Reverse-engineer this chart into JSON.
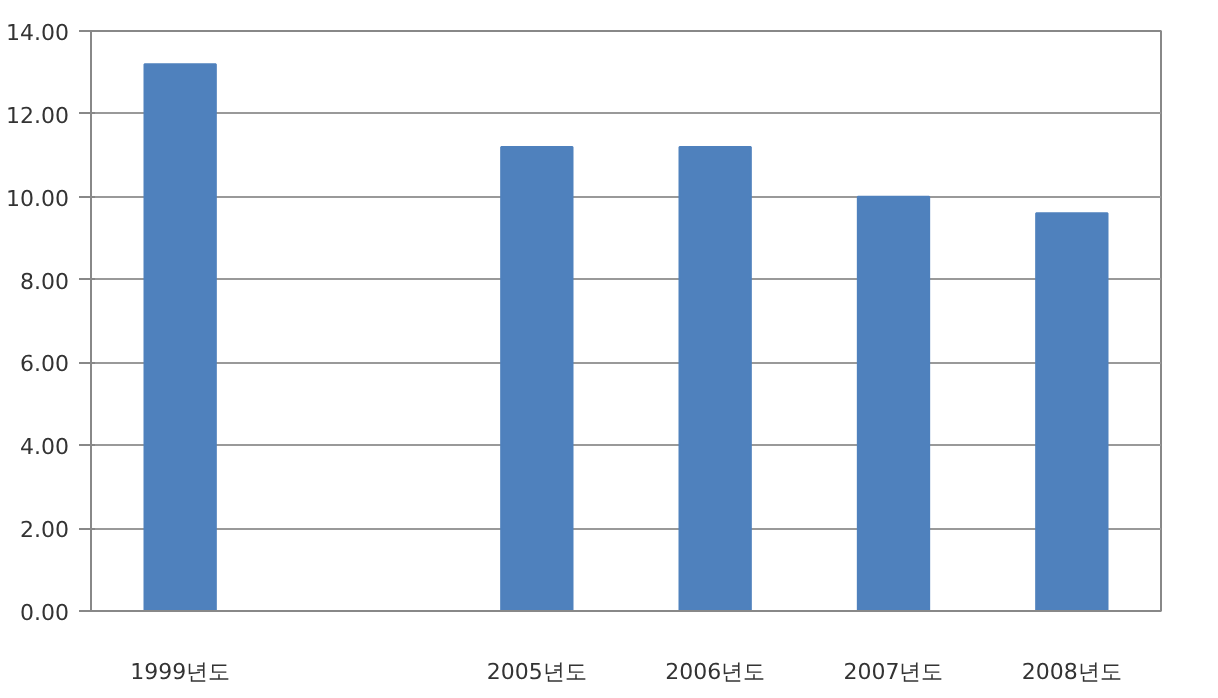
{
  "chart_data": {
    "type": "bar",
    "categories": [
      "1999년도",
      null,
      "2005년도",
      "2006년도",
      "2007년도",
      "2008년도"
    ],
    "values": [
      13.2,
      null,
      11.2,
      11.2,
      10.0,
      9.6
    ],
    "color": "#4f81bd",
    "ylim": [
      0,
      14
    ],
    "yticks": [
      {
        "value": 0,
        "label": "0.00"
      },
      {
        "value": 2,
        "label": "2.00"
      },
      {
        "value": 4,
        "label": "4.00"
      },
      {
        "value": 6,
        "label": "6.00"
      },
      {
        "value": 8,
        "label": "8.00"
      },
      {
        "value": 10,
        "label": "10.00"
      },
      {
        "value": 12,
        "label": "12.00"
      },
      {
        "value": 14,
        "label": "14.00"
      }
    ],
    "grid": "y"
  }
}
